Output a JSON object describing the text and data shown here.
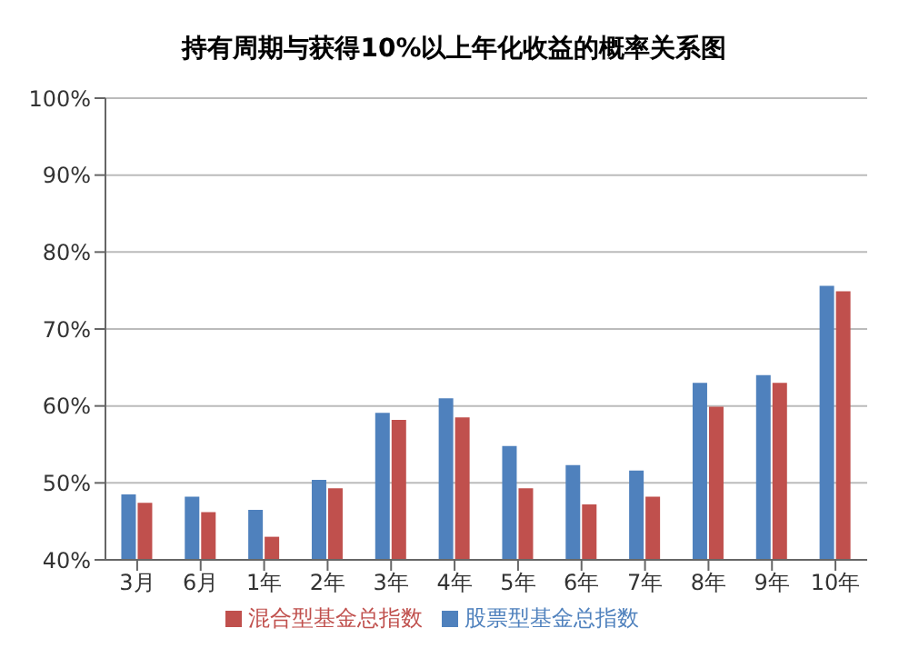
{
  "chart_data": {
    "type": "bar",
    "title": "持有周期与获得10%以上年化收益的概率关系图",
    "categories": [
      "3月",
      "6月",
      "1年",
      "2年",
      "3年",
      "4年",
      "5年",
      "6年",
      "7年",
      "8年",
      "9年",
      "10年"
    ],
    "series": [
      {
        "name": "股票型基金总指数",
        "color": "#4f81bd",
        "values": [
          48.5,
          48.2,
          46.5,
          50.4,
          59.1,
          61,
          54.8,
          52.3,
          51.6,
          63,
          64,
          75.6
        ]
      },
      {
        "name": "混合型基金总指数",
        "color": "#c0504d",
        "values": [
          47.4,
          46.2,
          43,
          49.3,
          58.2,
          58.5,
          49.3,
          47.2,
          48.2,
          59.9,
          63,
          74.9
        ]
      }
    ],
    "ylim": [
      40,
      100
    ],
    "yticks": [
      {
        "value": 40,
        "label": "40%"
      },
      {
        "value": 50,
        "label": "50%"
      },
      {
        "value": 60,
        "label": "60%"
      },
      {
        "value": 70,
        "label": "70%"
      },
      {
        "value": 80,
        "label": "80%"
      },
      {
        "value": 90,
        "label": "90%"
      },
      {
        "value": 100,
        "label": "100%"
      }
    ],
    "grid": "y",
    "legend": "bottom"
  }
}
